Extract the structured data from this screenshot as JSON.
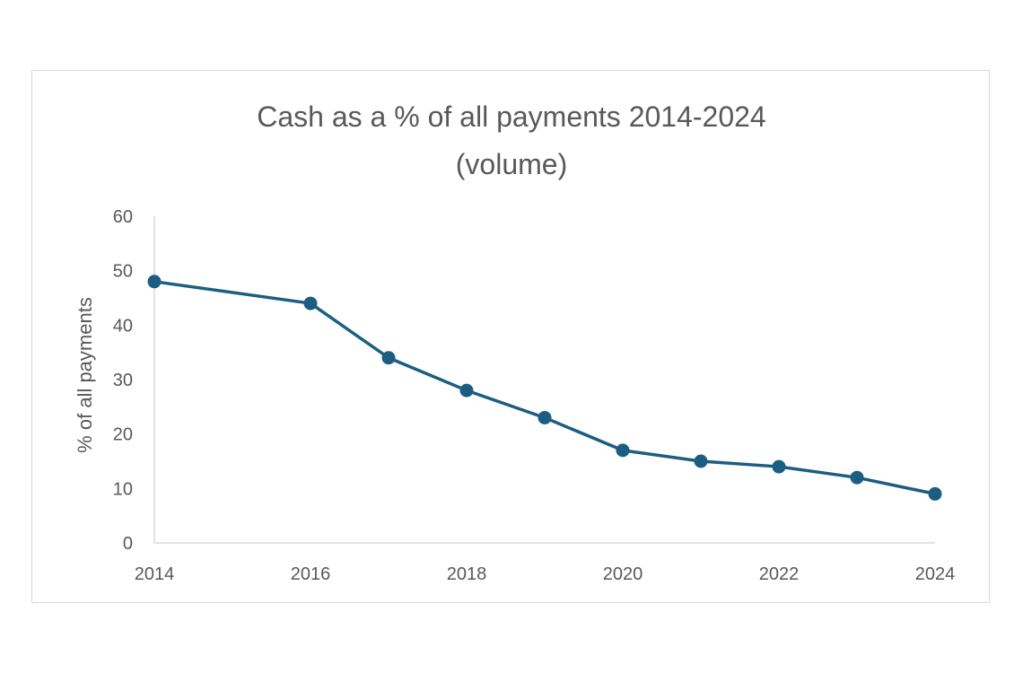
{
  "chart_data": {
    "type": "line",
    "title_lines": [
      "Cash as a % of all payments 2014-2024",
      "(volume)"
    ],
    "xlabel": "",
    "ylabel": "% of all payments",
    "xlim": [
      2014,
      2024
    ],
    "ylim": [
      0,
      60
    ],
    "x_ticks": [
      2014,
      2016,
      2018,
      2020,
      2022,
      2024
    ],
    "y_ticks": [
      0,
      10,
      20,
      30,
      40,
      50,
      60
    ],
    "grid": false,
    "legend": "none",
    "series": [
      {
        "color": "#1b5e82",
        "points": [
          {
            "x": 2014,
            "y": 48
          },
          {
            "x": 2016,
            "y": 44
          },
          {
            "x": 2017,
            "y": 34
          },
          {
            "x": 2018,
            "y": 28
          },
          {
            "x": 2019,
            "y": 23
          },
          {
            "x": 2020,
            "y": 17
          },
          {
            "x": 2021,
            "y": 15
          },
          {
            "x": 2022,
            "y": 14
          },
          {
            "x": 2023,
            "y": 12
          },
          {
            "x": 2024,
            "y": 9
          }
        ]
      }
    ]
  }
}
